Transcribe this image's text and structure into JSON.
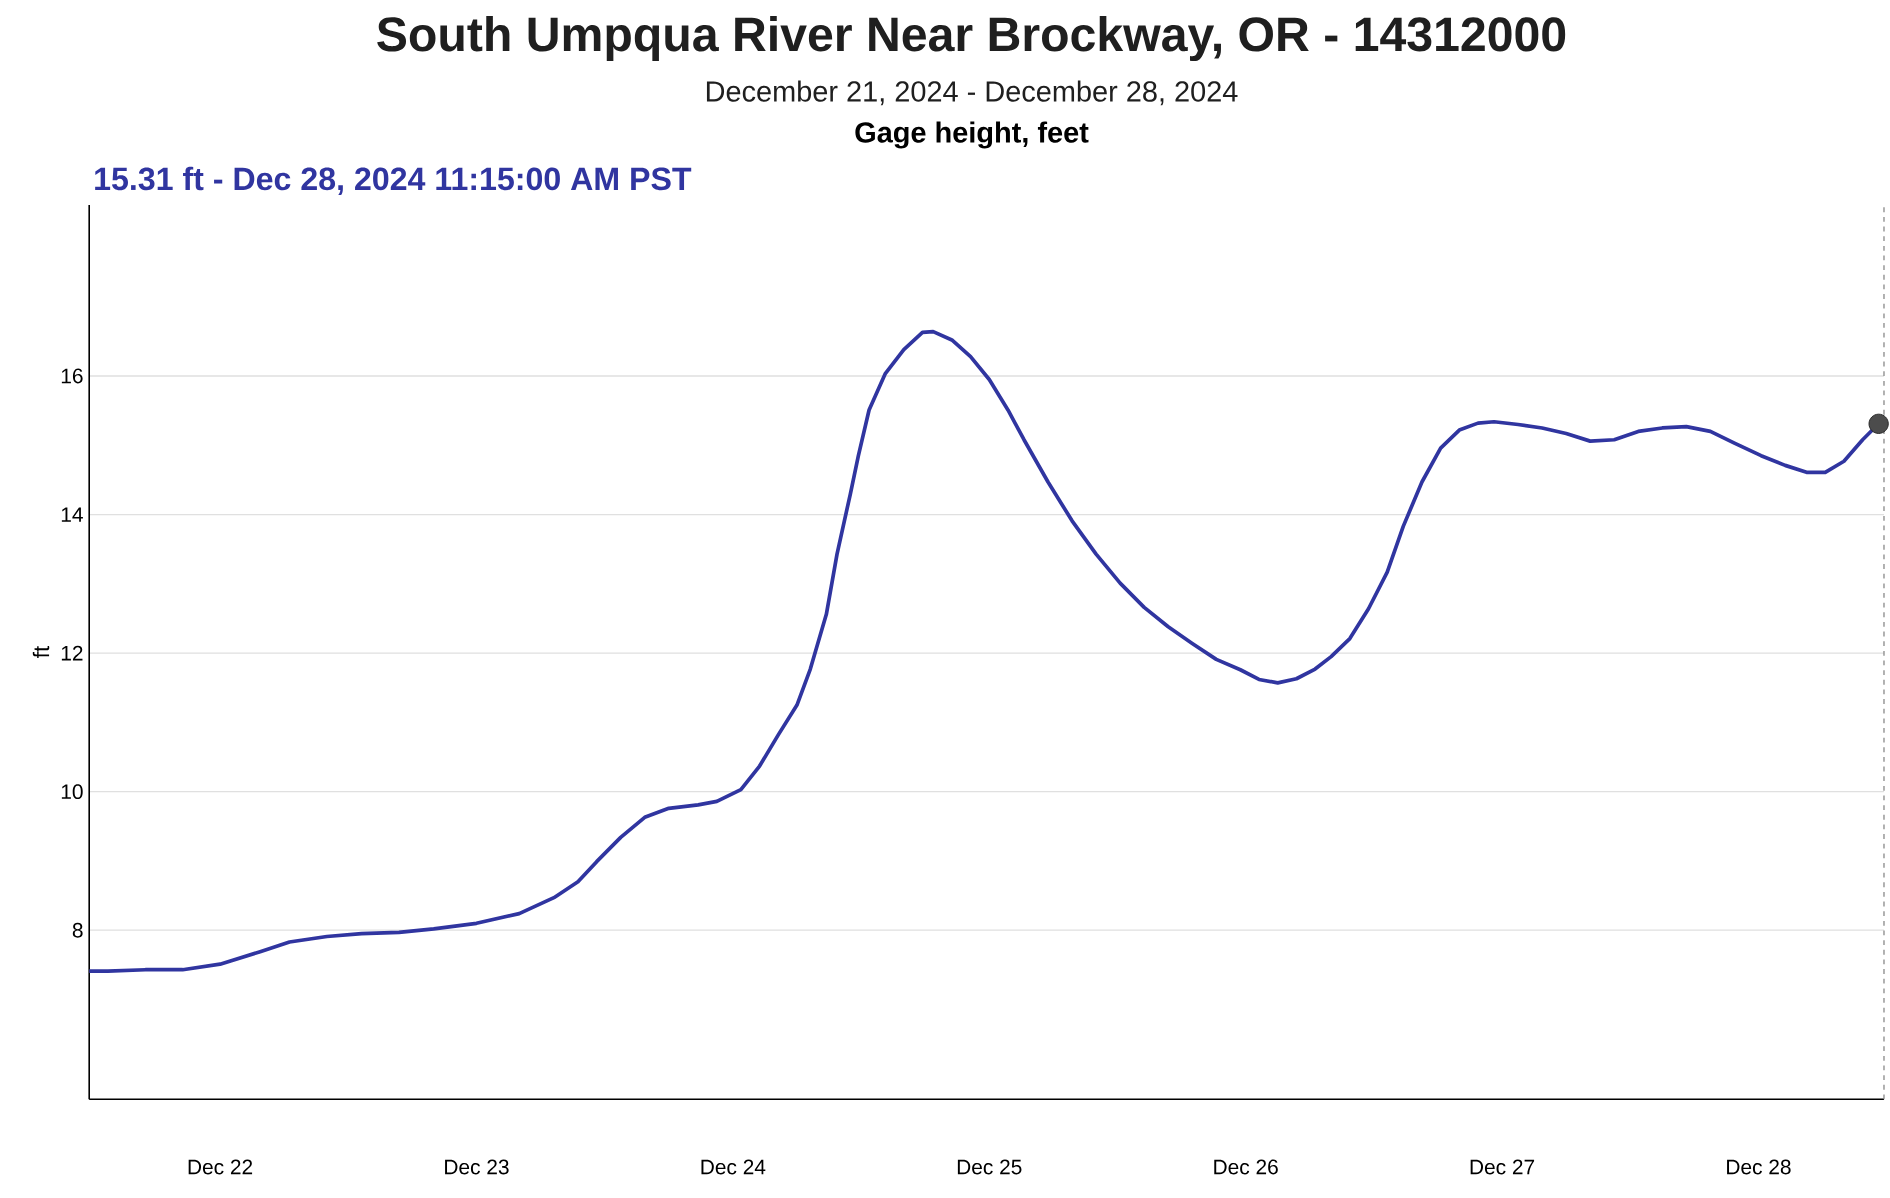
{
  "chart_data": {
    "type": "line",
    "title": "South Umpqua River Near Brockway, OR - 14312000",
    "subtitle": "December 21, 2024 - December 28, 2024",
    "ylabel": "ft",
    "annotations": [
      "**Gage height, feet**",
      "**15.31 ft - Dec 28, 2024 11:15:00 AM PST**"
    ],
    "color": "#3035a0",
    "x": [
      "2024-12-21T11:45",
      "2024-12-21T13:30",
      "2024-12-21T17:00",
      "2024-12-21T20:30",
      "2024-12-22T00:00",
      "2024-12-22T03:45",
      "2024-12-22T06:30",
      "2024-12-22T10:00",
      "2024-12-22T13:15",
      "2024-12-22T16:45",
      "2024-12-22T20:00",
      "2024-12-23T00:00",
      "2024-12-23T04:00",
      "2024-12-23T07:15",
      "2024-12-23T09:30",
      "2024-12-23T11:15",
      "2024-12-23T13:30",
      "2024-12-23T15:45",
      "2024-12-23T18:00",
      "2024-12-23T20:45",
      "2024-12-23T22:30",
      "2024-12-24T00:45",
      "2024-12-24T02:30",
      "2024-12-24T04:15",
      "2024-12-24T06:00",
      "2024-12-24T07:15",
      "2024-12-24T08:45",
      "2024-12-24T09:45",
      "2024-12-24T11:00",
      "2024-12-24T11:45",
      "2024-12-24T12:45",
      "2024-12-24T14:15",
      "2024-12-24T16:00",
      "2024-12-24T17:45",
      "2024-12-24T18:45",
      "2024-12-24T20:30",
      "2024-12-24T22:15",
      "2024-12-25T00:00",
      "2024-12-25T01:45",
      "2024-12-25T03:15",
      "2024-12-25T05:30",
      "2024-12-25T07:45",
      "2024-12-25T10:00",
      "2024-12-25T12:15",
      "2024-12-25T14:30",
      "2024-12-25T16:45",
      "2024-12-25T19:00",
      "2024-12-25T21:15",
      "2024-12-25T23:30",
      "2024-12-26T01:15",
      "2024-12-26T03:00",
      "2024-12-26T04:45",
      "2024-12-26T06:30",
      "2024-12-26T08:00",
      "2024-12-26T09:45",
      "2024-12-26T11:30",
      "2024-12-26T13:15",
      "2024-12-26T14:45",
      "2024-12-26T16:30",
      "2024-12-26T18:15",
      "2024-12-26T20:00",
      "2024-12-26T21:45",
      "2024-12-26T23:15",
      "2024-12-27T01:30",
      "2024-12-27T03:45",
      "2024-12-27T06:00",
      "2024-12-27T08:15",
      "2024-12-27T10:30",
      "2024-12-27T12:45",
      "2024-12-27T15:00",
      "2024-12-27T17:15",
      "2024-12-27T19:30",
      "2024-12-27T21:45",
      "2024-12-28T00:15",
      "2024-12-28T02:30",
      "2024-12-28T04:30",
      "2024-12-28T06:15",
      "2024-12-28T08:00",
      "2024-12-28T09:45",
      "2024-12-28T11:15"
    ],
    "values": [
      7.41,
      7.41,
      7.43,
      7.43,
      7.51,
      7.69,
      7.83,
      7.91,
      7.95,
      7.97,
      8.02,
      8.1,
      8.24,
      8.47,
      8.7,
      8.99,
      9.34,
      9.63,
      9.76,
      9.81,
      9.86,
      10.03,
      10.37,
      10.82,
      11.25,
      11.77,
      12.56,
      13.43,
      14.3,
      14.85,
      15.51,
      16.03,
      16.38,
      16.63,
      16.64,
      16.52,
      16.28,
      15.95,
      15.51,
      15.08,
      14.47,
      13.91,
      13.43,
      13.01,
      12.66,
      12.38,
      12.14,
      11.91,
      11.76,
      11.62,
      11.57,
      11.63,
      11.77,
      11.95,
      12.21,
      12.64,
      13.17,
      13.83,
      14.47,
      14.96,
      15.22,
      15.32,
      15.34,
      15.3,
      15.25,
      15.17,
      15.06,
      15.08,
      15.2,
      15.25,
      15.27,
      15.2,
      15.03,
      14.85,
      14.71,
      14.61,
      14.61,
      14.77,
      15.08,
      15.31
    ],
    "xlim": [
      "2024-12-21T11:45",
      "2024-12-28T11:45"
    ],
    "ylim": [
      5.56,
      18.47
    ],
    "xticks": [
      {
        "value": "2024-12-22",
        "label": "Dec 22"
      },
      {
        "value": "2024-12-23",
        "label": "Dec 23"
      },
      {
        "value": "2024-12-24",
        "label": "Dec 24"
      },
      {
        "value": "2024-12-25",
        "label": "Dec 25"
      },
      {
        "value": "2024-12-26",
        "label": "Dec 26"
      },
      {
        "value": "2024-12-27",
        "label": "Dec 27"
      },
      {
        "value": "2024-12-28",
        "label": "Dec 28"
      }
    ],
    "yticks": [
      8,
      10,
      12,
      14,
      16
    ],
    "grid": "y",
    "ref_lines": [
      {
        "axis": "x",
        "value": "2024-12-28T11:45",
        "color": "#888888",
        "line_style": "dashed"
      }
    ]
  }
}
